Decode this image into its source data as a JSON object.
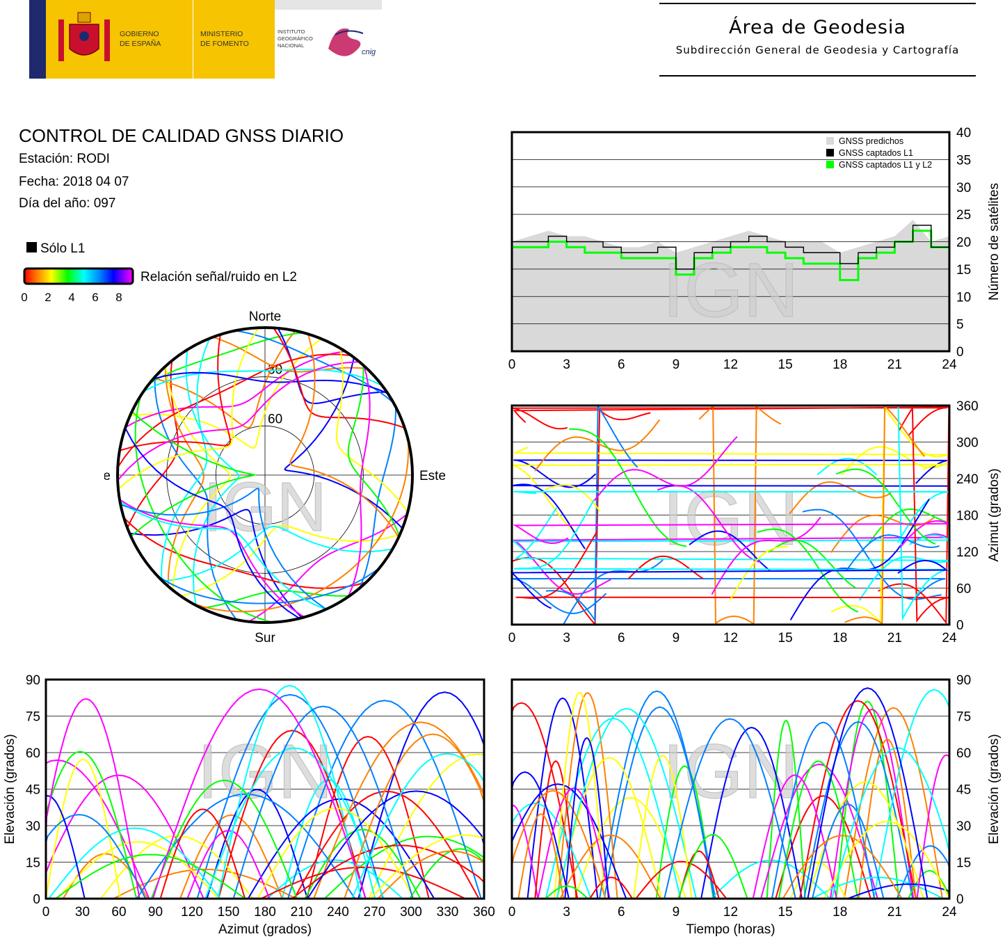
{
  "header": {
    "gov_line1": "GOBIERNO",
    "gov_line2": "DE ESPAÑA",
    "min_line1": "MINISTERIO",
    "min_line2": "DE FOMENTO",
    "inst_line1": "INSTITUTO",
    "inst_line2": "GEOGRÁFICO",
    "inst_line3": "NACIONAL",
    "cnig": "cnig",
    "area_title": "Área de Geodesia",
    "area_subtitle": "Subdirección General de Geodesia y Cartografía",
    "colors": {
      "yellow": "#f6c400",
      "red": "#c8102e",
      "navy": "#1f2a6e"
    }
  },
  "report": {
    "title": "CONTROL DE CALIDAD GNSS DIARIO",
    "station": "Estación: RODI",
    "date": "Fecha: 2018 04 07",
    "doy": "Día del año: 097"
  },
  "legend": {
    "l1_only": "Sólo L1",
    "snr_label": "Relación señal/ruido en L2",
    "snr_ticks": [
      "0",
      "2",
      "4",
      "6",
      "8"
    ],
    "colormap": [
      "#ff0000",
      "#ff8000",
      "#ffff00",
      "#00ff00",
      "#00ffff",
      "#0080ff",
      "#0000ff",
      "#ff00ff"
    ]
  },
  "watermark": "IGN",
  "chart_data": [
    {
      "type": "line",
      "title": "Número de satélites",
      "xlabel": "",
      "ylabel": "Número de satélites",
      "xlim": [
        0,
        24
      ],
      "ylim": [
        0,
        40
      ],
      "xticks": [
        "0",
        "3",
        "6",
        "9",
        "12",
        "15",
        "18",
        "21",
        "24"
      ],
      "yticks": [
        "0",
        "5",
        "10",
        "15",
        "20",
        "25",
        "30",
        "35",
        "40"
      ],
      "legend": [
        "GNSS predichos",
        "GNSS captados L1",
        "GNSS captados L1 y L2"
      ],
      "legend_colors": [
        "#d9d9d9",
        "#000000",
        "#00ff00"
      ],
      "x": [
        0,
        1,
        2,
        3,
        4,
        5,
        6,
        7,
        8,
        9,
        10,
        11,
        12,
        13,
        14,
        15,
        16,
        17,
        18,
        19,
        20,
        21,
        22,
        23,
        24
      ],
      "series": [
        {
          "name": "GNSS predichos",
          "values": [
            20,
            21,
            22,
            21,
            21,
            20,
            19,
            19,
            20,
            18,
            19,
            20,
            21,
            22,
            21,
            20,
            20,
            20,
            18,
            19,
            20,
            21,
            24,
            20,
            21
          ]
        },
        {
          "name": "GNSS captados L1",
          "values": [
            20,
            20,
            21,
            20,
            20,
            19,
            18,
            18,
            19,
            15,
            18,
            19,
            20,
            21,
            20,
            19,
            18,
            18,
            16,
            18,
            19,
            20,
            23,
            19,
            20
          ]
        },
        {
          "name": "GNSS captados L1 y L2",
          "values": [
            19,
            19,
            20,
            19,
            18,
            18,
            17,
            17,
            17,
            14,
            17,
            18,
            19,
            19,
            18,
            17,
            16,
            16,
            13,
            17,
            18,
            20,
            22,
            19,
            19
          ]
        }
      ]
    },
    {
      "type": "scatter",
      "title": "",
      "xlabel": "",
      "ylabel": "Azimut (grados)",
      "xlim": [
        0,
        24
      ],
      "ylim": [
        0,
        360
      ],
      "xticks": [
        "0",
        "3",
        "6",
        "9",
        "12",
        "15",
        "18",
        "21",
        "24"
      ],
      "yticks": [
        "0",
        "60",
        "120",
        "180",
        "240",
        "300",
        "360"
      ]
    },
    {
      "type": "scatter",
      "title": "",
      "xlabel": "Azimut (grados)",
      "ylabel": "Elevación (grados)",
      "xlim": [
        0,
        360
      ],
      "ylim": [
        0,
        90
      ],
      "xticks": [
        "0",
        "30",
        "60",
        "90",
        "120",
        "150",
        "180",
        "210",
        "240",
        "270",
        "300",
        "330",
        "360"
      ],
      "yticks": [
        "0",
        "15",
        "30",
        "45",
        "60",
        "75",
        "90"
      ]
    },
    {
      "type": "scatter",
      "title": "",
      "xlabel": "Tiempo (horas)",
      "ylabel": "Elevación (grados)",
      "xlim": [
        0,
        24
      ],
      "ylim": [
        0,
        90
      ],
      "xticks": [
        "0",
        "3",
        "6",
        "9",
        "12",
        "15",
        "18",
        "21",
        "24"
      ],
      "yticks": [
        "0",
        "15",
        "30",
        "45",
        "60",
        "75",
        "90"
      ]
    },
    {
      "type": "scatter",
      "title": "",
      "polar": true,
      "labels": {
        "north": "Norte",
        "south": "Sur",
        "east": "Este",
        "west": "Oeste"
      },
      "rings": [
        "30",
        "60"
      ]
    }
  ]
}
